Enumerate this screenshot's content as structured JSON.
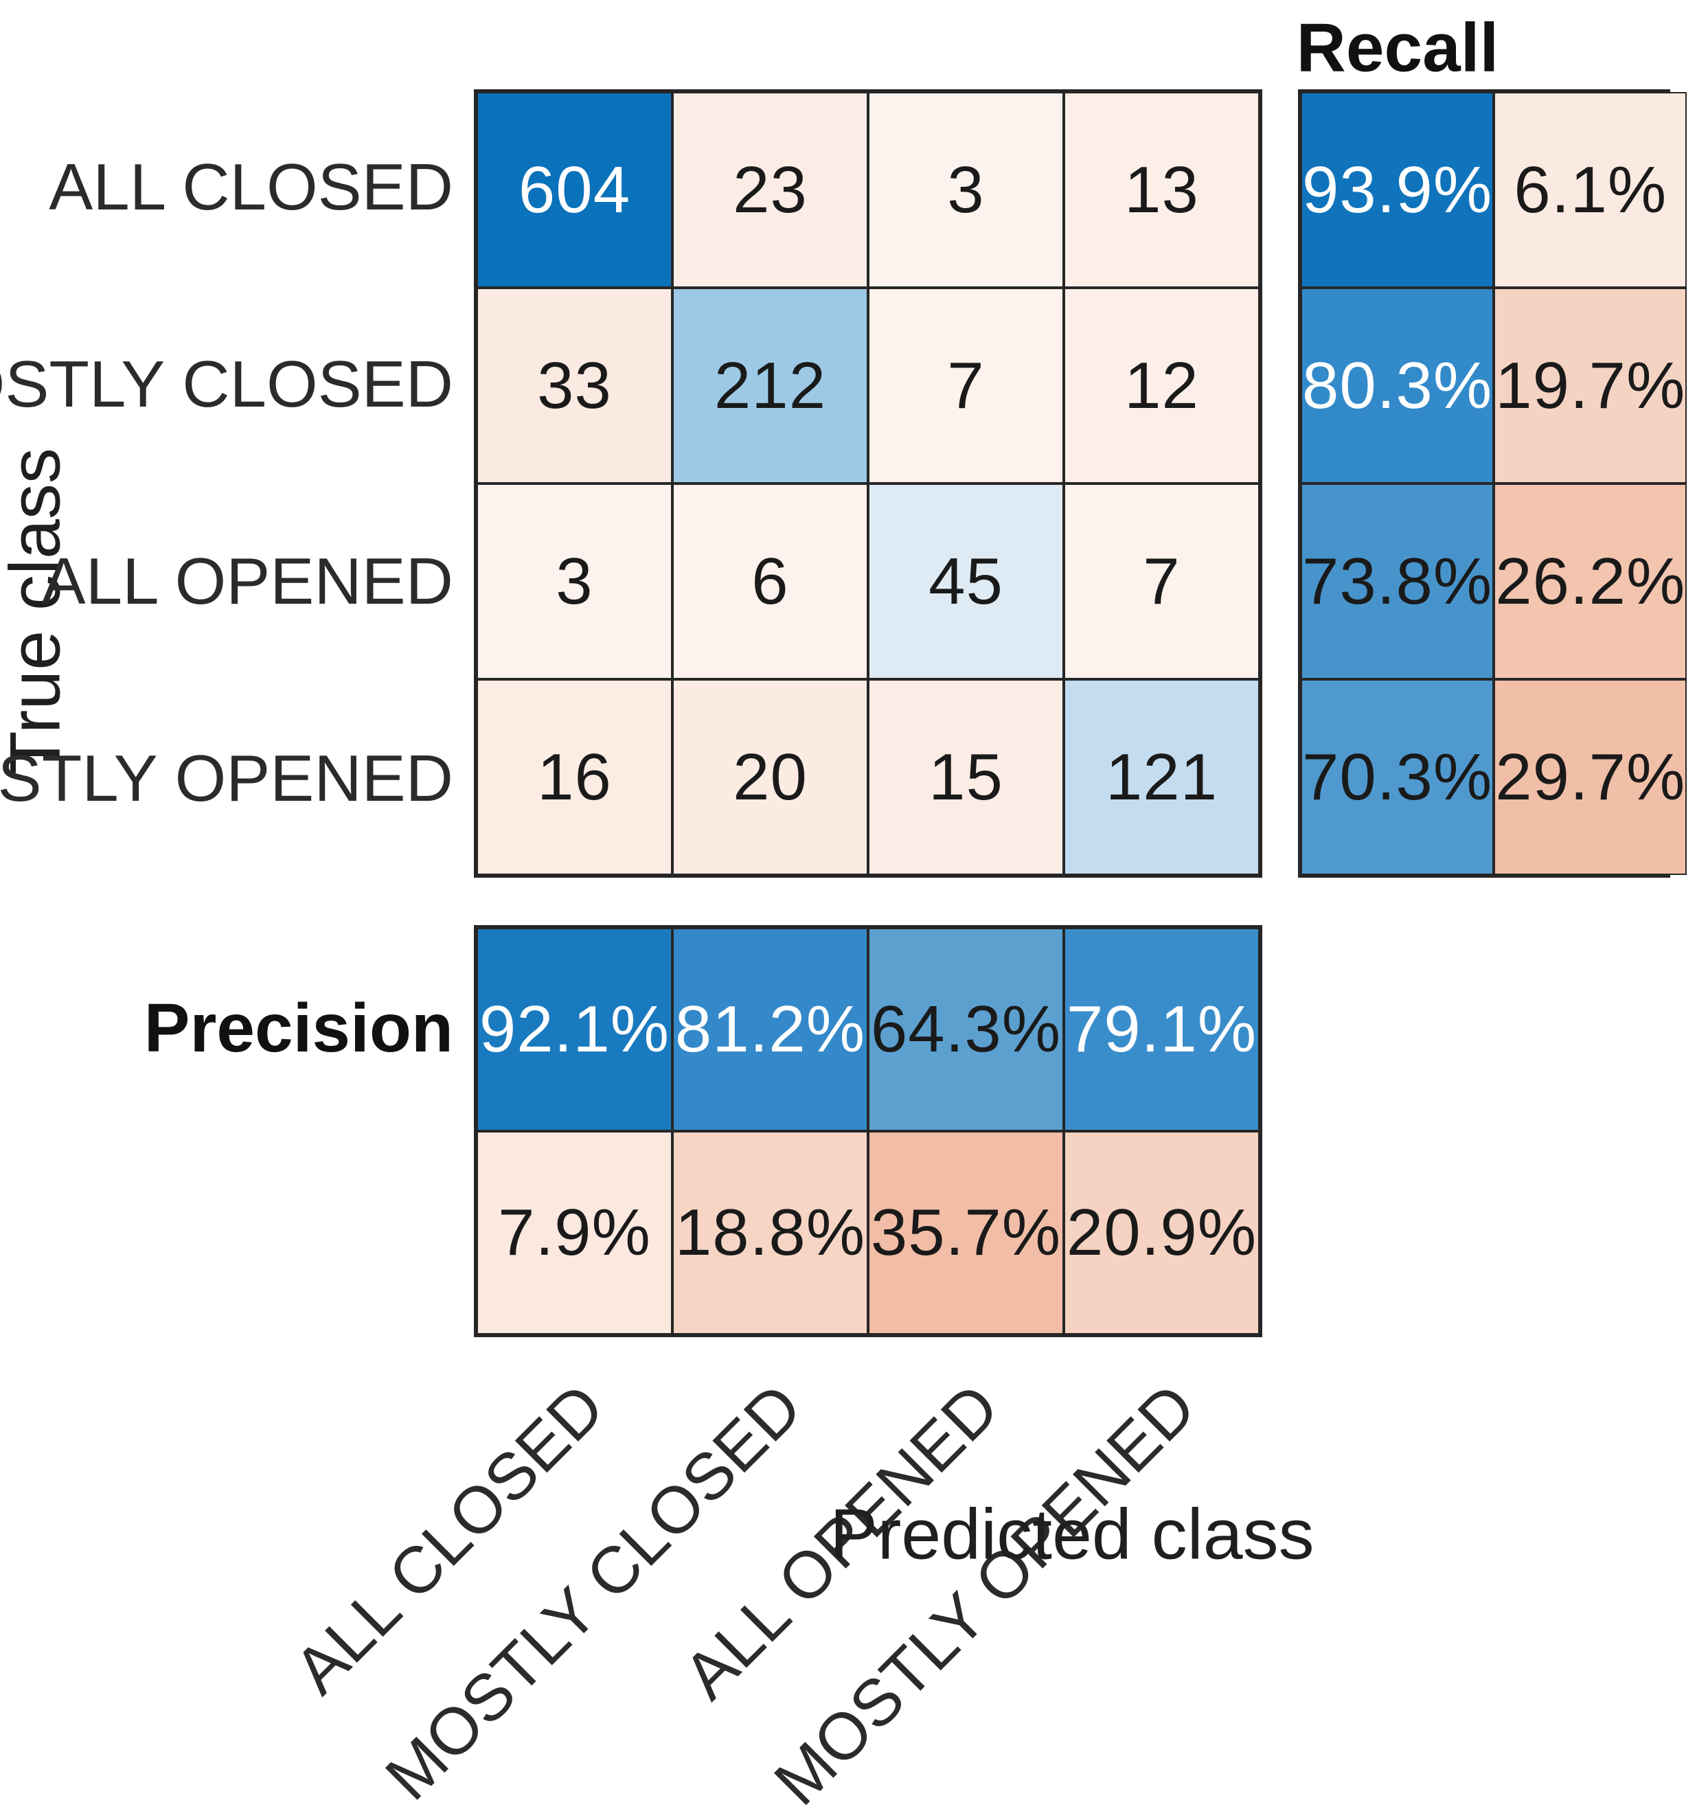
{
  "figure": {
    "background": "#ffffff",
    "grid_color": "#262626",
    "diagonal_blue_strong": "#0a72ba",
    "error_pink_strong": "#f2bda6"
  },
  "labels": {
    "recall_title": "Recall",
    "precision_title": "Precision",
    "xlabel": "Predicted class",
    "ylabel": "True class"
  },
  "chart_data": {
    "type": "heatmap",
    "subtype": "confusion_matrix",
    "xlabel": "Predicted class",
    "ylabel": "True class",
    "classes": [
      "ALL CLOSED",
      "MOSTLY CLOSED",
      "ALL OPENED",
      "MOSTLY OPENED"
    ],
    "matrix": [
      [
        604,
        23,
        3,
        13
      ],
      [
        33,
        212,
        7,
        12
      ],
      [
        3,
        6,
        45,
        7
      ],
      [
        16,
        20,
        15,
        121
      ]
    ],
    "row_summary": {
      "title": "Recall",
      "recall_pct": [
        93.9,
        80.3,
        73.8,
        70.3
      ],
      "false_negative_pct": [
        6.1,
        19.7,
        26.2,
        29.7
      ]
    },
    "col_summary": {
      "title": "Precision",
      "precision_pct": [
        92.1,
        81.2,
        64.3,
        79.1
      ],
      "false_discovery_pct": [
        7.9,
        18.8,
        35.7,
        20.9
      ]
    },
    "legend_note": "blue shades encode correct-classification magnitude, pink shades encode error magnitude"
  },
  "matrix_cells": [
    {
      "text": "604",
      "bg": "#0a72ba",
      "fg": "#ffffff"
    },
    {
      "text": "23",
      "bg": "#fbede6",
      "fg": "#1a1a1a"
    },
    {
      "text": "3",
      "bg": "#fdf3ee",
      "fg": "#1a1a1a"
    },
    {
      "text": "13",
      "bg": "#fcefe8",
      "fg": "#1a1a1a"
    },
    {
      "text": "33",
      "bg": "#faeae1",
      "fg": "#1a1a1a"
    },
    {
      "text": "212",
      "bg": "#9dc9e7",
      "fg": "#1a1a1a"
    },
    {
      "text": "7",
      "bg": "#fdf2ec",
      "fg": "#1a1a1a"
    },
    {
      "text": "12",
      "bg": "#fcefe9",
      "fg": "#1a1a1a"
    },
    {
      "text": "3",
      "bg": "#fdf3ee",
      "fg": "#1a1a1a"
    },
    {
      "text": "6",
      "bg": "#fdf2ed",
      "fg": "#1a1a1a"
    },
    {
      "text": "45",
      "bg": "#deebf4",
      "fg": "#1a1a1a"
    },
    {
      "text": "7",
      "bg": "#fdf2ec",
      "fg": "#1a1a1a"
    },
    {
      "text": "16",
      "bg": "#fbece4",
      "fg": "#1a1a1a"
    },
    {
      "text": "20",
      "bg": "#fbebe3",
      "fg": "#1a1a1a"
    },
    {
      "text": "15",
      "bg": "#fbece5",
      "fg": "#1a1a1a"
    },
    {
      "text": "121",
      "bg": "#c3dcef",
      "fg": "#1a1a1a"
    }
  ],
  "recall_cells": [
    {
      "text": "93.9%",
      "bg": "#0f74bc",
      "fg": "#ffffff"
    },
    {
      "text": "6.1%",
      "bg": "#fbeae1",
      "fg": "#1a1a1a"
    },
    {
      "text": "80.3%",
      "bg": "#338aca",
      "fg": "#ffffff"
    },
    {
      "text": "19.7%",
      "bg": "#f5d3c3",
      "fg": "#1a1a1a"
    },
    {
      "text": "73.8%",
      "bg": "#4794cc",
      "fg": "#1a1a1a"
    },
    {
      "text": "26.2%",
      "bg": "#f3c5af",
      "fg": "#1a1a1a"
    },
    {
      "text": "70.3%",
      "bg": "#4f99cf",
      "fg": "#1a1a1a"
    },
    {
      "text": "29.7%",
      "bg": "#f1bfa8",
      "fg": "#1a1a1a"
    }
  ],
  "precision_cells": [
    {
      "text": "92.1%",
      "bg": "#1a7abf",
      "fg": "#ffffff"
    },
    {
      "text": "81.2%",
      "bg": "#3389c9",
      "fg": "#ffffff"
    },
    {
      "text": "64.3%",
      "bg": "#5ca0d0",
      "fg": "#1a1a1a"
    },
    {
      "text": "79.1%",
      "bg": "#3a8dcb",
      "fg": "#ffffff"
    },
    {
      "text": "7.9%",
      "bg": "#fbe9e0",
      "fg": "#1a1a1a"
    },
    {
      "text": "18.8%",
      "bg": "#f6d5c5",
      "fg": "#1a1a1a"
    },
    {
      "text": "35.7%",
      "bg": "#f2bda6",
      "fg": "#1a1a1a"
    },
    {
      "text": "20.9%",
      "bg": "#f5d2c1",
      "fg": "#1a1a1a"
    }
  ]
}
